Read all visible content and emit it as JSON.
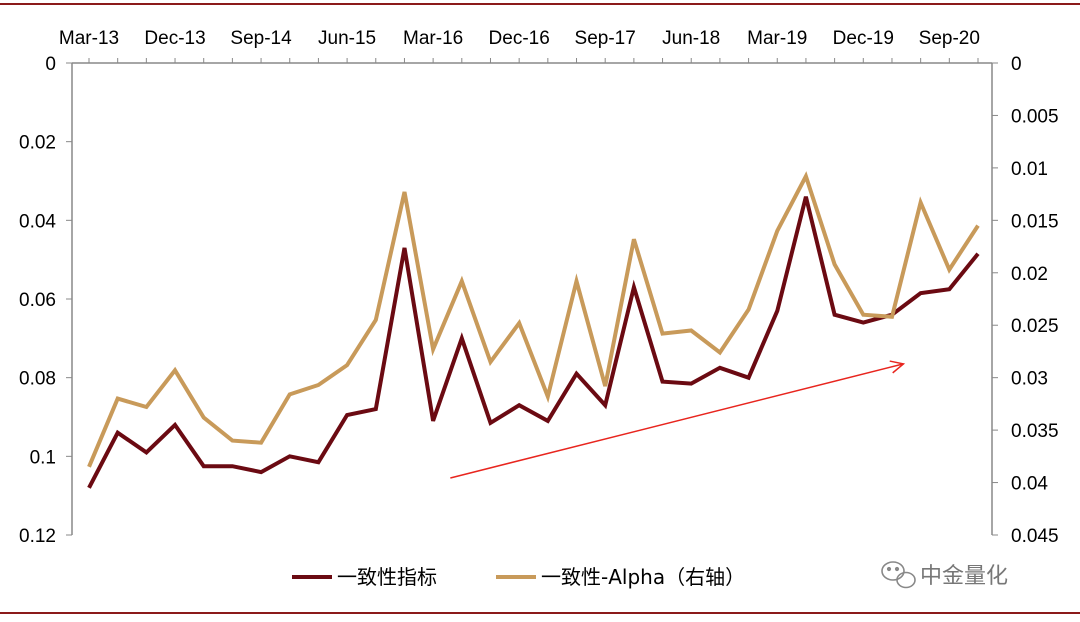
{
  "chart_data": {
    "type": "line",
    "x": [
      "2013-03",
      "2013-06",
      "2013-09",
      "2013-12",
      "2014-03",
      "2014-06",
      "2014-09",
      "2014-12",
      "2015-03",
      "2015-06",
      "2015-09",
      "2015-12",
      "2016-03",
      "2016-06",
      "2016-09",
      "2016-12",
      "2017-03",
      "2017-06",
      "2017-09",
      "2017-12",
      "2018-03",
      "2018-06",
      "2018-09",
      "2018-12",
      "2019-03",
      "2019-06",
      "2019-09",
      "2019-12",
      "2020-03",
      "2020-06",
      "2020-09",
      "2020-12"
    ],
    "x_tick_labels": [
      "Mar-13",
      "Dec-13",
      "Sep-14",
      "Jun-15",
      "Mar-16",
      "Dec-16",
      "Sep-17",
      "Jun-18",
      "Mar-19",
      "Dec-19",
      "Sep-20"
    ],
    "x_tick_positions": [
      0,
      3,
      6,
      9,
      12,
      15,
      18,
      21,
      24,
      27,
      30
    ],
    "y_left": {
      "ticks": [
        "0",
        "0.02",
        "0.04",
        "0.06",
        "0.08",
        "0.1",
        "0.12"
      ],
      "range": [
        0,
        0.12
      ],
      "inverted": true
    },
    "y_right": {
      "ticks": [
        "0",
        "0.005",
        "0.01",
        "0.015",
        "0.02",
        "0.025",
        "0.03",
        "0.035",
        "0.04",
        "0.045"
      ],
      "range": [
        0,
        0.045
      ],
      "inverted": true
    },
    "series": [
      {
        "name": "一致性指标",
        "axis": "left",
        "color": "#6b0a12",
        "values": [
          0.108,
          0.094,
          0.099,
          0.092,
          0.1025,
          0.1025,
          0.104,
          0.1,
          0.1015,
          0.0895,
          0.088,
          0.047,
          0.091,
          0.07,
          0.0915,
          0.087,
          0.091,
          0.079,
          0.087,
          0.057,
          0.081,
          0.0815,
          0.0775,
          0.08,
          0.063,
          0.034,
          0.064,
          0.066,
          0.064,
          0.0585,
          0.0575,
          0.0485
        ]
      },
      {
        "name": "一致性-Alpha（右轴）",
        "axis": "right",
        "color": "#c89a5a",
        "values": [
          0.0385,
          0.032,
          0.0328,
          0.0293,
          0.0338,
          0.036,
          0.0362,
          0.0316,
          0.0307,
          0.0288,
          0.0245,
          0.0123,
          0.0273,
          0.0208,
          0.0285,
          0.0248,
          0.0318,
          0.0208,
          0.0308,
          0.0168,
          0.0258,
          0.0255,
          0.0276,
          0.0235,
          0.016,
          0.0108,
          0.0192,
          0.024,
          0.0242,
          0.0133,
          0.0197,
          0.0155
        ]
      }
    ],
    "annotation": {
      "type": "arrow",
      "color": "#e8251e",
      "from": {
        "x": 12.6,
        "y_left": 0.1055
      },
      "to": {
        "x": 28.4,
        "y_left": 0.0765
      }
    },
    "grid": false,
    "legend_position": "bottom"
  },
  "legend": {
    "items": [
      "一致性指标",
      "一致性-Alpha（右轴）"
    ]
  },
  "watermark": {
    "text": "中金量化"
  },
  "frame_color": "#8b1a1a"
}
